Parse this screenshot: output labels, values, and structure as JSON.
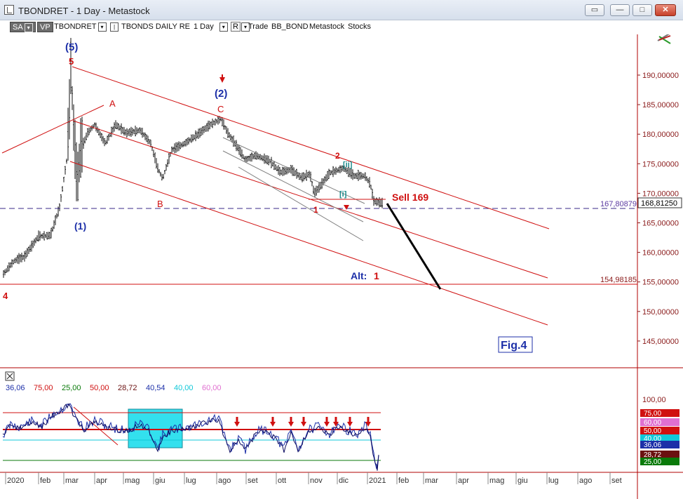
{
  "window": {
    "title": "TBONDRET - 1 Day - Metastock",
    "buttons": [
      "restore",
      "minimize",
      "maximize",
      "close"
    ]
  },
  "toolbar": {
    "sa_label": "SA",
    "vp_label": "VP",
    "symbol": "TBONDRET",
    "series_name": "TBONDS DAILY RE",
    "period": "1 Day",
    "r_label": "R",
    "items": [
      "Trade",
      "BB_BOND",
      "Metastock",
      "Stocks"
    ]
  },
  "price_axis": {
    "ticks": [
      "190,00000",
      "185,00000",
      "180,00000",
      "175,00000",
      "170,00000",
      "165,00000",
      "160,00000",
      "155,00000",
      "150,00000",
      "145,00000"
    ],
    "tick_values": [
      190,
      185,
      180,
      175,
      170,
      165,
      160,
      155,
      150,
      145
    ],
    "current_price": "168,81250",
    "hline_dashed_label": "167,80879",
    "hline_solid_label": "154,98185"
  },
  "annotations": {
    "wave5_blue": "(5)",
    "wave5_red": "5",
    "wave1_blue": "(1)",
    "wave2_blue": "(2)",
    "wave_a": "A",
    "wave_b": "B",
    "wave_c": "C",
    "wave4": "4",
    "minor1": "1",
    "minor2": "2",
    "minor_i": "[i]",
    "minor_ii": "[ii]",
    "sell_label": "Sell 169",
    "alt_label": "Alt:",
    "alt_value": "1",
    "fig_label": "Fig.4"
  },
  "indicator": {
    "legend": [
      {
        "text": "36,06",
        "color": "#1c2fa8"
      },
      {
        "text": "75,00",
        "color": "#d01010"
      },
      {
        "text": "25,00",
        "color": "#0a7a0a"
      },
      {
        "text": "50,00",
        "color": "#d01010"
      },
      {
        "text": "28,72",
        "color": "#6b1010"
      },
      {
        "text": "40,54",
        "color": "#1c2fa8"
      },
      {
        "text": "40,00",
        "color": "#10c8d8"
      },
      {
        "text": "60,00",
        "color": "#e070d0"
      }
    ],
    "axis_tick": "100,00",
    "badges": [
      {
        "text": "75,00",
        "bg": "#d01010",
        "fg": "#ffffff"
      },
      {
        "text": "60,00",
        "bg": "#e070d0",
        "fg": "#ffffff"
      },
      {
        "text": "50,00",
        "bg": "#d01010",
        "fg": "#ffffff"
      },
      {
        "text": "40,00",
        "bg": "#10c8d8",
        "fg": "#ffffff"
      },
      {
        "text": "36,06",
        "bg": "#1c2fa8",
        "fg": "#ffffff"
      },
      {
        "text": "28,72",
        "bg": "#6b1010",
        "fg": "#ffffff"
      },
      {
        "text": "25,00",
        "bg": "#0a7a0a",
        "fg": "#ffffff"
      }
    ]
  },
  "date_axis": {
    "labels": [
      "2020",
      "feb",
      "mar",
      "apr",
      "mag",
      "giu",
      "lug",
      "ago",
      "set",
      "ott",
      "nov",
      "dic",
      "2021",
      "feb",
      "mar",
      "apr",
      "mag",
      "giu",
      "lug",
      "ago",
      "set"
    ]
  },
  "colors": {
    "price_bars": "#111111",
    "channel": "#d01010",
    "wave_blue": "#1c2fa8",
    "wave_red": "#d01010",
    "highlight_box": "#33e0ee"
  }
}
